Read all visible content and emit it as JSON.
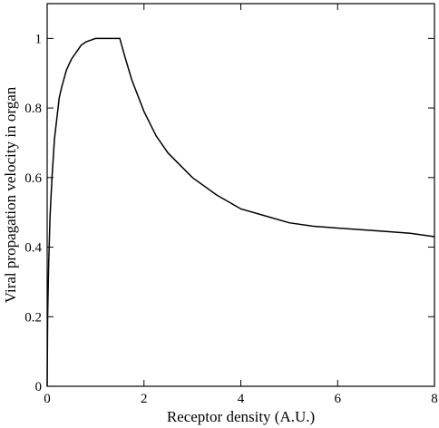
{
  "chart_data": {
    "type": "line",
    "title": "",
    "xlabel": "Receptor density (A.U.)",
    "ylabel": "Viral propagation velocity in organ",
    "xlim": [
      0,
      8
    ],
    "ylim": [
      0,
      1.1
    ],
    "xticks": [
      0,
      2,
      4,
      6,
      8
    ],
    "xtick_labels": [
      "0",
      "2",
      "4",
      "6",
      "8"
    ],
    "yticks": [
      0,
      0.2,
      0.4,
      0.6,
      0.8,
      1.0
    ],
    "ytick_labels": [
      "0",
      "0.2",
      "0.4",
      "0.6",
      "0.8",
      "1"
    ],
    "grid": false,
    "legend": "none",
    "line_color": "#000000",
    "series": [
      {
        "x": [
          0,
          0.01,
          0.03,
          0.06,
          0.1,
          0.15,
          0.2,
          0.25,
          0.3,
          0.4,
          0.5,
          0.6,
          0.7,
          0.8,
          0.9,
          1.0,
          1.5,
          1.6,
          1.75,
          2.0,
          2.25,
          2.5,
          3.0,
          3.5,
          4.0,
          4.5,
          5.0,
          5.5,
          6.0,
          6.5,
          7.0,
          7.5,
          8.0
        ],
        "y": [
          0,
          0.2,
          0.346,
          0.49,
          0.6,
          0.71,
          0.77,
          0.83,
          0.86,
          0.91,
          0.94,
          0.96,
          0.98,
          0.99,
          0.995,
          1.0,
          1.0,
          0.95,
          0.88,
          0.79,
          0.72,
          0.67,
          0.6,
          0.55,
          0.51,
          0.49,
          0.47,
          0.46,
          0.455,
          0.45,
          0.445,
          0.44,
          0.43
        ]
      }
    ]
  }
}
